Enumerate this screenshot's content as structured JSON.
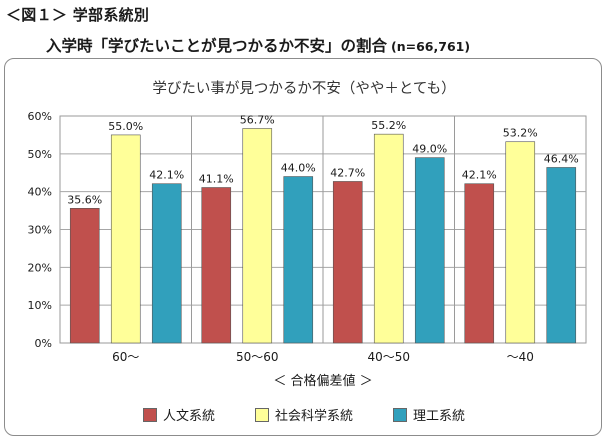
{
  "figure": {
    "label": "＜図１＞ 学部系統別",
    "title": "入学時「学びたいことが見つかるか不安」の割合",
    "sample_size": "(n=66,761)"
  },
  "chart_data": {
    "type": "bar",
    "title": "学びたい事が見つかるか不安（やや＋とても）",
    "xlabel": "＜ 合格偏差値 ＞",
    "ylabel": "",
    "categories": [
      "60～",
      "50～60",
      "40～50",
      "～40"
    ],
    "ylim": [
      0,
      60
    ],
    "yticks": [
      0,
      10,
      20,
      30,
      40,
      50,
      60
    ],
    "ytick_labels": [
      "0%",
      "10%",
      "20%",
      "30%",
      "40%",
      "50%",
      "60%"
    ],
    "grid": true,
    "legend_position": "bottom",
    "series": [
      {
        "name": "人文系統",
        "color": "#c0504d",
        "values": [
          35.6,
          41.1,
          42.7,
          42.1
        ],
        "labels": [
          "35.6%",
          "41.1%",
          "42.7%",
          "42.1%"
        ]
      },
      {
        "name": "社会科学系統",
        "color": "#ffff99",
        "values": [
          55.0,
          56.7,
          55.2,
          53.2
        ],
        "labels": [
          "55.0%",
          "56.7%",
          "55.2%",
          "53.2%"
        ]
      },
      {
        "name": "理工系統",
        "color": "#31a0bc",
        "values": [
          42.1,
          44.0,
          49.0,
          46.4
        ],
        "labels": [
          "42.1%",
          "44.0%",
          "49.0%",
          "46.4%"
        ]
      }
    ]
  }
}
